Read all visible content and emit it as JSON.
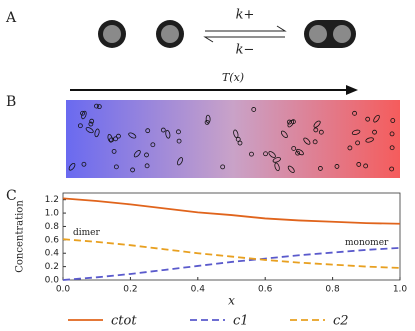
{
  "panels": {
    "a": {
      "label": "A",
      "k_plus": "k+",
      "k_minus": "k−"
    },
    "b": {
      "label": "B",
      "arrow_label": "T(x)"
    },
    "c": {
      "label": "C"
    }
  },
  "chart_data": {
    "type": "line",
    "xlabel": "x",
    "ylabel": "Concentration",
    "x": [
      0,
      0.1,
      0.2,
      0.3,
      0.4,
      0.5,
      0.6,
      0.7,
      0.8,
      0.9,
      1.0
    ],
    "series": [
      {
        "name": "ctot",
        "color": "#e0641c",
        "dash": "solid",
        "values": [
          1.22,
          1.18,
          1.13,
          1.07,
          1.01,
          0.97,
          0.92,
          0.89,
          0.87,
          0.85,
          0.84
        ]
      },
      {
        "name": "c1",
        "color": "#5a5acc",
        "dash": "dashed",
        "values": [
          0,
          0.04,
          0.09,
          0.15,
          0.21,
          0.27,
          0.32,
          0.37,
          0.41,
          0.45,
          0.48
        ]
      },
      {
        "name": "c2",
        "color": "#e8a020",
        "dash": "dashed",
        "values": [
          0.61,
          0.57,
          0.52,
          0.46,
          0.4,
          0.35,
          0.3,
          0.26,
          0.23,
          0.2,
          0.18
        ]
      }
    ],
    "annotations": [
      {
        "text": "dimer",
        "color": "#e8a020"
      },
      {
        "text": "monomer",
        "color": "#5a5acc"
      }
    ],
    "xlim": [
      0,
      1
    ],
    "ylim": [
      0,
      1.3
    ],
    "xticks": [
      {
        "value": 0,
        "label": "0.0"
      },
      {
        "value": 0.2,
        "label": "0.2"
      },
      {
        "value": 0.4,
        "label": "0.4"
      },
      {
        "value": 0.6,
        "label": "0.6"
      },
      {
        "value": 0.8,
        "label": "0.8"
      },
      {
        "value": 1,
        "label": "1.0"
      }
    ],
    "yticks": [
      {
        "value": 0,
        "label": "0.0"
      },
      {
        "value": 0.2,
        "label": "0.2"
      },
      {
        "value": 0.4,
        "label": "0.4"
      },
      {
        "value": 0.6,
        "label": "0.6"
      },
      {
        "value": 0.8,
        "label": "0.8"
      },
      {
        "value": 1,
        "label": "1.0"
      },
      {
        "value": 1.2,
        "label": "1.2"
      }
    ]
  }
}
